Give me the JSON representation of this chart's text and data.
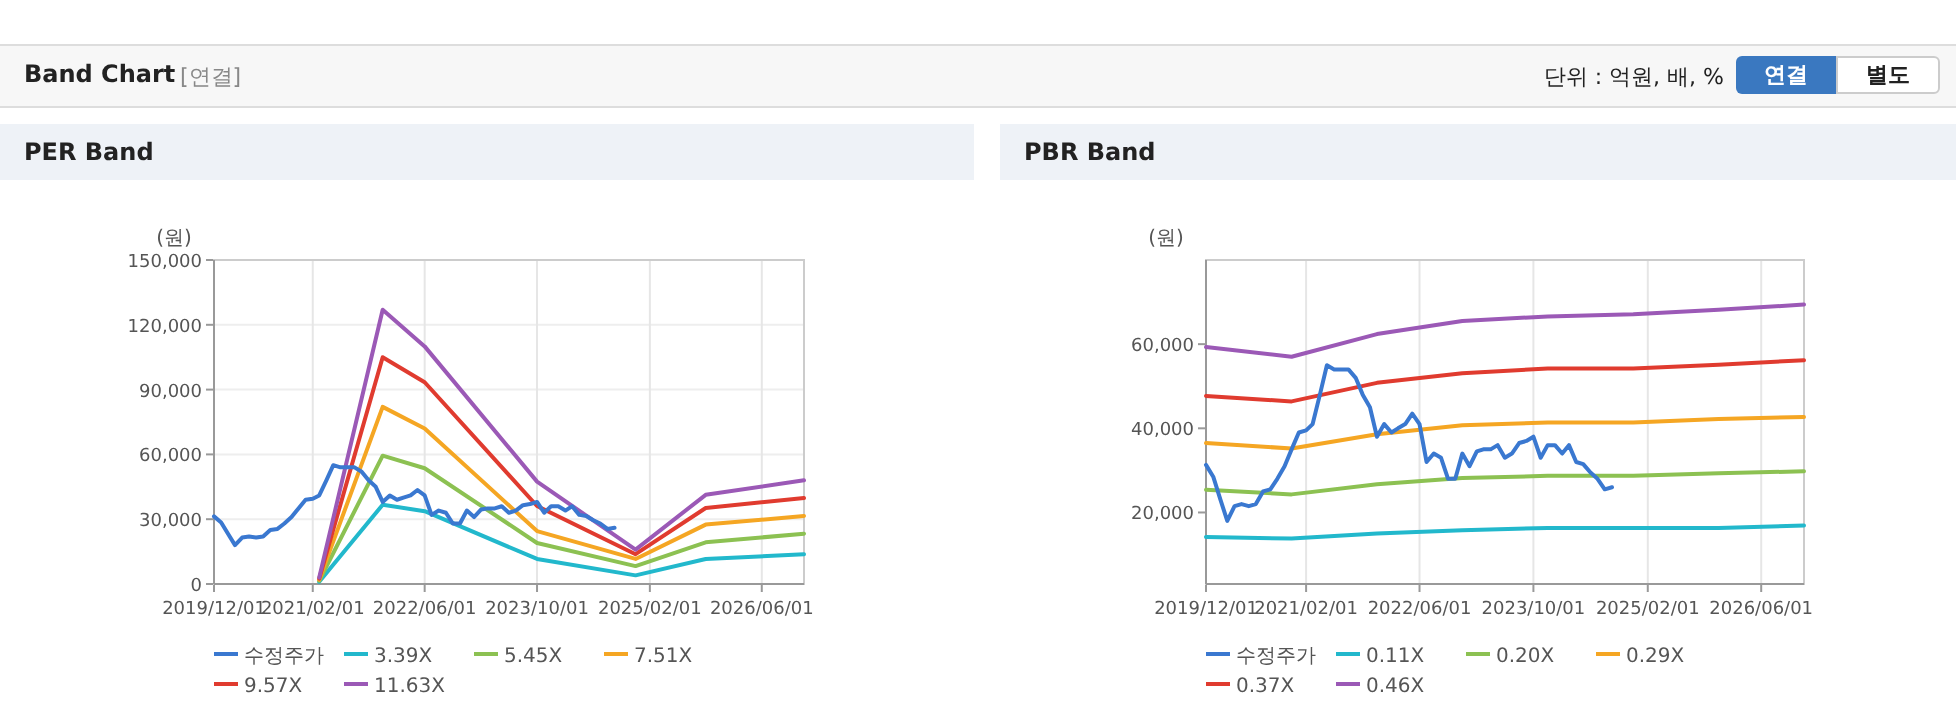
{
  "chart_data": [
    {
      "type": "other",
      "title": "Band Chart",
      "annotations": [
        "[연결]",
        "단위 : 억원, 배, %",
        "연결",
        "별도"
      ]
    },
    {
      "type": "line",
      "title": "PER Band",
      "ylabel": "(원)",
      "xlim": [
        "2019-12-01",
        "2026-12-01"
      ],
      "xticks": [
        {
          "value": "2019-12-01",
          "label": "2019/12/01"
        },
        {
          "value": "2021-02-01",
          "label": "2021/02/01"
        },
        {
          "value": "2022-06-01",
          "label": "2022/06/01"
        },
        {
          "value": "2023-10-01",
          "label": "2023/10/01"
        },
        {
          "value": "2025-02-01",
          "label": "2025/02/01"
        },
        {
          "value": "2026-06-01",
          "label": "2026/06/01"
        }
      ],
      "ylim": [
        0,
        150000
      ],
      "yticks": [
        0,
        {
          "value": 30000,
          "label": "30,000"
        },
        {
          "value": 60000,
          "label": "60,000"
        },
        {
          "value": 90000,
          "label": "90,000"
        },
        {
          "value": 120000,
          "label": "120,000"
        },
        {
          "value": 150000,
          "label": "150,000"
        }
      ],
      "grid": true,
      "legend": "bottom",
      "series": [
        {
          "name": "수정주가",
          "color": "#3a78d0",
          "x": [
            "2019-12",
            "2020-01",
            "2020-02",
            "2020-03",
            "2020-04",
            "2020-05",
            "2020-06",
            "2020-07",
            "2020-08",
            "2020-09",
            "2020-10",
            "2020-11",
            "2020-12",
            "2021-01",
            "2021-02",
            "2021-03",
            "2021-04",
            "2021-05",
            "2021-06",
            "2021-07",
            "2021-08",
            "2021-09",
            "2021-10",
            "2021-11",
            "2021-12",
            "2022-01",
            "2022-02",
            "2022-03",
            "2022-04",
            "2022-05",
            "2022-06",
            "2022-07",
            "2022-08",
            "2022-09",
            "2022-10",
            "2022-11",
            "2022-12",
            "2023-01",
            "2023-02",
            "2023-03",
            "2023-04",
            "2023-05",
            "2023-06",
            "2023-07",
            "2023-08",
            "2023-09",
            "2023-10",
            "2023-11",
            "2023-12",
            "2024-01",
            "2024-02",
            "2024-03",
            "2024-04",
            "2024-05",
            "2024-06",
            "2024-07",
            "2024-08",
            "2024-09"
          ],
          "values": [
            31300,
            28500,
            23000,
            18000,
            21500,
            22000,
            21500,
            22000,
            25000,
            25500,
            28000,
            31000,
            35000,
            39000,
            39500,
            41000,
            48000,
            55000,
            54000,
            54000,
            54000,
            52000,
            48000,
            45000,
            38000,
            41000,
            39000,
            40000,
            41000,
            43500,
            41000,
            32000,
            34000,
            33000,
            28000,
            28000,
            34000,
            31000,
            34500,
            35000,
            35000,
            36000,
            33000,
            34000,
            36500,
            37000,
            38000,
            33000,
            36000,
            36000,
            34000,
            36000,
            32000,
            31500,
            29500,
            28000,
            25500,
            26000
          ]
        },
        {
          "name": "3.39X",
          "color": "#22b8cc",
          "x": [
            "2021-03",
            "2021-12",
            "2022-06",
            "2023-10",
            "2024-12",
            "2025-10",
            "2026-12"
          ],
          "values": [
            1000,
            36700,
            33700,
            11600,
            4000,
            11600,
            13800
          ]
        },
        {
          "name": "5.45X",
          "color": "#8cc152",
          "x": [
            "2021-03",
            "2021-12",
            "2022-06",
            "2023-10",
            "2024-12",
            "2025-10",
            "2026-12"
          ],
          "values": [
            1500,
            59400,
            53600,
            19000,
            8300,
            19300,
            23300
          ]
        },
        {
          "name": "7.51X",
          "color": "#f5a623",
          "x": [
            "2021-03",
            "2021-12",
            "2022-06",
            "2023-10",
            "2024-12",
            "2025-10",
            "2026-12"
          ],
          "values": [
            2000,
            82000,
            72000,
            24500,
            11600,
            27500,
            31500
          ]
        },
        {
          "name": "9.57X",
          "color": "#e03b2f",
          "x": [
            "2021-03",
            "2021-12",
            "2022-06",
            "2023-10",
            "2024-12",
            "2025-10",
            "2026-12"
          ],
          "values": [
            2500,
            105000,
            93400,
            36100,
            13800,
            35200,
            39800
          ]
        },
        {
          "name": "11.63X",
          "color": "#9b59b6",
          "x": [
            "2021-03",
            "2021-12",
            "2022-06",
            "2023-10",
            "2024-12",
            "2025-10",
            "2026-12"
          ],
          "values": [
            3000,
            127000,
            110000,
            47400,
            15900,
            41300,
            48000
          ]
        }
      ]
    },
    {
      "type": "line",
      "title": "PBR Band",
      "ylabel": "(원)",
      "xlim": [
        "2019-12-01",
        "2026-12-01"
      ],
      "xticks": [
        {
          "value": "2019-12-01",
          "label": "2019/12/01"
        },
        {
          "value": "2021-02-01",
          "label": "2021/02/01"
        },
        {
          "value": "2022-06-01",
          "label": "2022/06/01"
        },
        {
          "value": "2023-10-01",
          "label": "2023/10/01"
        },
        {
          "value": "2025-02-01",
          "label": "2025/02/01"
        },
        {
          "value": "2026-06-01",
          "label": "2026/06/01"
        }
      ],
      "ylim": [
        3000,
        80000
      ],
      "yticks": [
        {
          "value": 20000,
          "label": "20,000"
        },
        {
          "value": 40000,
          "label": "40,000"
        },
        {
          "value": 60000,
          "label": "60,000"
        }
      ],
      "grid": "x",
      "legend": "bottom",
      "series": [
        {
          "name": "수정주가",
          "color": "#3a78d0",
          "x": [
            "2019-12",
            "2020-01",
            "2020-02",
            "2020-03",
            "2020-04",
            "2020-05",
            "2020-06",
            "2020-07",
            "2020-08",
            "2020-09",
            "2020-10",
            "2020-11",
            "2020-12",
            "2021-01",
            "2021-02",
            "2021-03",
            "2021-04",
            "2021-05",
            "2021-06",
            "2021-07",
            "2021-08",
            "2021-09",
            "2021-10",
            "2021-11",
            "2021-12",
            "2022-01",
            "2022-02",
            "2022-03",
            "2022-04",
            "2022-05",
            "2022-06",
            "2022-07",
            "2022-08",
            "2022-09",
            "2022-10",
            "2022-11",
            "2022-12",
            "2023-01",
            "2023-02",
            "2023-03",
            "2023-04",
            "2023-05",
            "2023-06",
            "2023-07",
            "2023-08",
            "2023-09",
            "2023-10",
            "2023-11",
            "2023-12",
            "2024-01",
            "2024-02",
            "2024-03",
            "2024-04",
            "2024-05",
            "2024-06",
            "2024-07",
            "2024-08",
            "2024-09"
          ],
          "values": [
            31300,
            28500,
            23000,
            18000,
            21500,
            22000,
            21500,
            22000,
            25000,
            25500,
            28000,
            31000,
            35000,
            39000,
            39500,
            41000,
            48000,
            55000,
            54000,
            54000,
            54000,
            52000,
            48000,
            45000,
            38000,
            41000,
            39000,
            40000,
            41000,
            43500,
            41000,
            32000,
            34000,
            33000,
            28000,
            28000,
            34000,
            31000,
            34500,
            35000,
            35000,
            36000,
            33000,
            34000,
            36500,
            37000,
            38000,
            33000,
            36000,
            36000,
            34000,
            36000,
            32000,
            31500,
            29500,
            28000,
            25500,
            26000
          ]
        },
        {
          "name": "0.11X",
          "color": "#22b8cc",
          "x": [
            "2019-12",
            "2020-12",
            "2021-12",
            "2022-12",
            "2023-12",
            "2024-12",
            "2025-12",
            "2026-12"
          ],
          "values": [
            14200,
            13800,
            15000,
            15800,
            16300,
            16300,
            16300,
            16900
          ]
        },
        {
          "name": "0.20X",
          "color": "#8cc152",
          "x": [
            "2019-12",
            "2020-12",
            "2021-12",
            "2022-12",
            "2023-12",
            "2024-12",
            "2025-12",
            "2026-12"
          ],
          "values": [
            25400,
            24300,
            26700,
            28200,
            28700,
            28700,
            29300,
            29800
          ]
        },
        {
          "name": "0.29X",
          "color": "#f5a623",
          "x": [
            "2019-12",
            "2020-12",
            "2021-12",
            "2022-12",
            "2023-12",
            "2024-12",
            "2025-12",
            "2026-12"
          ],
          "values": [
            36500,
            35200,
            38600,
            40700,
            41400,
            41400,
            42200,
            42700
          ]
        },
        {
          "name": "0.37X",
          "color": "#e03b2f",
          "x": [
            "2019-12",
            "2020-12",
            "2021-12",
            "2022-12",
            "2023-12",
            "2024-12",
            "2025-12",
            "2026-12"
          ],
          "values": [
            47700,
            46400,
            50800,
            53100,
            54200,
            54200,
            55100,
            56200
          ]
        },
        {
          "name": "0.46X",
          "color": "#9b59b6",
          "x": [
            "2019-12",
            "2020-12",
            "2021-12",
            "2022-12",
            "2023-12",
            "2024-12",
            "2025-12",
            "2026-12"
          ],
          "values": [
            59300,
            57000,
            62400,
            65500,
            66600,
            67100,
            68200,
            69400
          ]
        }
      ]
    }
  ]
}
